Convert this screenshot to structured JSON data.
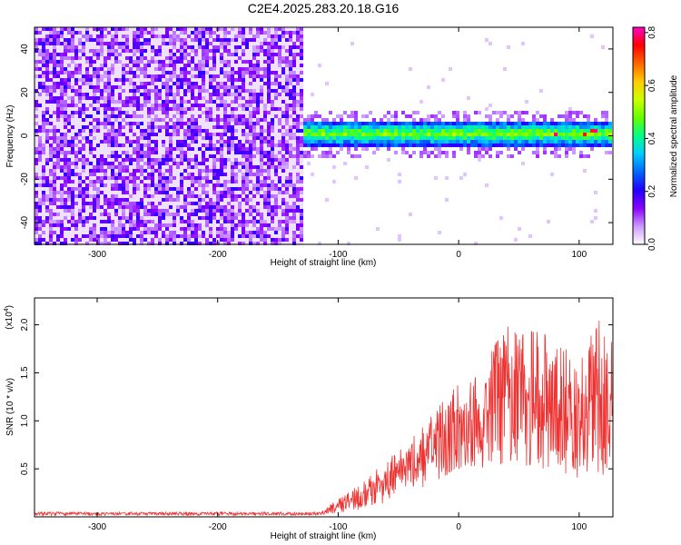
{
  "title": "C2E4.2025.283.20.18.G16",
  "chart_data": [
    {
      "type": "heatmap",
      "name": "spectrogram",
      "xlabel": "Height of straight line (km)",
      "ylabel": "Frequency (Hz)",
      "xlim": [
        -352,
        128
      ],
      "ylim": [
        -50,
        50
      ],
      "xticks": [
        -300,
        -200,
        -100,
        0,
        100
      ],
      "yticks": [
        -40,
        -20,
        0,
        20,
        40
      ],
      "noise_region_x": [
        -352,
        -130
      ],
      "signal_band": {
        "x_start": -130,
        "x_end": 128,
        "center_hz": 1,
        "half_width_hz": 6
      },
      "colorbar": {
        "label": "Normalized spectral amplitude",
        "range": [
          0.0,
          0.82
        ],
        "ticks": [
          "0.0",
          "0.2",
          "0.4",
          "0.6",
          "0.8"
        ],
        "tick_values": [
          0.0,
          0.2,
          0.4,
          0.6,
          0.8
        ],
        "colors": [
          "#ffffff",
          "#cc99ff",
          "#8800ff",
          "#2200ff",
          "#0066ff",
          "#00ccff",
          "#00ff88",
          "#66ff00",
          "#ccff00",
          "#ffcc00",
          "#ff6600",
          "#ff0000",
          "#ff00cc"
        ]
      }
    },
    {
      "type": "area",
      "name": "snr",
      "xlabel": "Height of straight line (km)",
      "ylabel": "SNR (10 * v/v)",
      "yscale_label": "(x10",
      "yscale_exp": "4",
      "xlim": [
        -352,
        128
      ],
      "ylim": [
        0,
        22800
      ],
      "xticks": [
        -300,
        -200,
        -100,
        0,
        100
      ],
      "yticks": [
        5000,
        10000,
        15000,
        20000
      ],
      "ytick_labels": [
        "0.5",
        "1.0",
        "1.5",
        "2.0"
      ],
      "color": "#ee3333",
      "envelope_x": [
        -352,
        -115,
        -100,
        -80,
        -60,
        -40,
        -20,
        0,
        20,
        40,
        60,
        80,
        100,
        115,
        128
      ],
      "envelope_y": [
        300,
        400,
        2000,
        3500,
        6000,
        8000,
        11000,
        14000,
        16000,
        20000,
        20500,
        18000,
        17000,
        21000,
        18000
      ],
      "baseline_y": [
        200,
        200,
        400,
        800,
        1500,
        2500,
        3500,
        4500,
        5000,
        5500,
        5000,
        4500,
        4000,
        3000,
        2500
      ]
    }
  ]
}
